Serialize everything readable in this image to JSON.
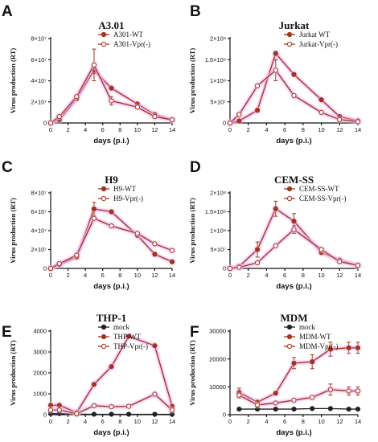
{
  "colors": {
    "wt": "#a0351c",
    "vpr": "#a0351c",
    "mock": "#222222",
    "halo": "#f2b8ee"
  },
  "chart_data": [
    {
      "letter": "A",
      "type": "line",
      "title": "A3.01",
      "ylabel": "Virus production (RT)",
      "xlabel": "days (p.i.)",
      "xlim": [
        0,
        14
      ],
      "xticks": [
        0,
        2,
        4,
        6,
        8,
        10,
        12,
        14
      ],
      "ylim": [
        0,
        80000000
      ],
      "ytick_values": [
        0,
        20000000,
        40000000,
        60000000,
        80000000
      ],
      "ytick_labels": [
        "0",
        "2×10⁷",
        "4×10⁷",
        "6×10⁷",
        "8×10⁷"
      ],
      "legend_position": "top-right",
      "series": [
        {
          "name": "A301-WT",
          "style": "wt",
          "x": [
            0,
            1,
            3,
            5,
            7,
            10,
            12,
            14
          ],
          "y": [
            0,
            3000000,
            23000000,
            50000000,
            33000000,
            18000000,
            8000000,
            3000000
          ],
          "err": [
            0,
            0,
            0,
            3000000,
            0,
            0,
            0,
            0
          ]
        },
        {
          "name": "A301-Vpr(-)",
          "style": "vpr",
          "x": [
            0,
            1,
            3,
            5,
            7,
            10,
            12,
            14
          ],
          "y": [
            0,
            6000000,
            25000000,
            55000000,
            21000000,
            15000000,
            6000000,
            3000000
          ],
          "err": [
            0,
            0,
            0,
            15000000,
            4000000,
            0,
            0,
            0
          ]
        }
      ]
    },
    {
      "letter": "B",
      "type": "line",
      "title": "Jurkat",
      "ylabel": "Virus production (RT)",
      "xlabel": "days (p.i.)",
      "xlim": [
        0,
        14
      ],
      "xticks": [
        0,
        2,
        4,
        6,
        8,
        10,
        12,
        14
      ],
      "ylim": [
        0,
        200000000
      ],
      "ytick_values": [
        0,
        50000000,
        100000000,
        150000000,
        200000000
      ],
      "ytick_labels": [
        "0",
        "5×10⁷",
        "1×10⁸",
        "1.5×10⁸",
        "2×10⁸"
      ],
      "legend_position": "top-right",
      "series": [
        {
          "name": "Jurkat WT",
          "style": "wt",
          "x": [
            0,
            1,
            3,
            5,
            7,
            10,
            12,
            14
          ],
          "y": [
            0,
            5000000,
            30000000,
            165000000,
            115000000,
            55000000,
            15000000,
            5000000
          ],
          "err": [
            0,
            0,
            0,
            0,
            0,
            0,
            0,
            0
          ]
        },
        {
          "name": "Jurkat-Vpr(-)",
          "style": "vpr",
          "x": [
            0,
            1,
            3,
            5,
            7,
            10,
            12,
            14
          ],
          "y": [
            0,
            20000000,
            88000000,
            125000000,
            65000000,
            25000000,
            8000000,
            3000000
          ],
          "err": [
            0,
            0,
            0,
            25000000,
            0,
            0,
            0,
            0
          ]
        }
      ]
    },
    {
      "letter": "C",
      "type": "line",
      "title": "H9",
      "ylabel": "Virus production (RT)",
      "xlabel": "days (p.i.)",
      "xlim": [
        0,
        14
      ],
      "xticks": [
        0,
        2,
        4,
        6,
        8,
        10,
        12,
        14
      ],
      "ylim": [
        0,
        80000000
      ],
      "ytick_values": [
        0,
        20000000,
        40000000,
        60000000,
        80000000
      ],
      "ytick_labels": [
        "0",
        "2×10⁷",
        "4×10⁷",
        "6×10⁷",
        "8×10⁷"
      ],
      "legend_position": "top-right",
      "series": [
        {
          "name": "H9-WT",
          "style": "wt",
          "x": [
            0,
            1,
            3,
            5,
            7,
            10,
            12,
            14
          ],
          "y": [
            0,
            4000000,
            12000000,
            63000000,
            60000000,
            35000000,
            15000000,
            7000000
          ],
          "err": [
            0,
            0,
            0,
            7000000,
            0,
            0,
            0,
            0
          ]
        },
        {
          "name": "H9-Vpr(-)",
          "style": "vpr",
          "x": [
            0,
            1,
            3,
            5,
            7,
            10,
            12,
            14
          ],
          "y": [
            0,
            5000000,
            14000000,
            53000000,
            45000000,
            37000000,
            26000000,
            19000000
          ],
          "err": [
            0,
            0,
            0,
            0,
            0,
            0,
            0,
            0
          ]
        }
      ]
    },
    {
      "letter": "D",
      "type": "line",
      "title": "CEM-SS",
      "ylabel": "Virus production (RT)",
      "xlabel": "days (p.i.)",
      "xlim": [
        0,
        14
      ],
      "xticks": [
        0,
        2,
        4,
        6,
        8,
        10,
        12,
        14
      ],
      "ylim": [
        0,
        200000000
      ],
      "ytick_values": [
        0,
        50000000,
        100000000,
        150000000,
        200000000
      ],
      "ytick_labels": [
        "0",
        "5×10⁷",
        "1×10⁸",
        "1.5×10⁸",
        "2×10⁸"
      ],
      "legend_position": "top-right",
      "series": [
        {
          "name": "CEM-SS-WT",
          "style": "wt",
          "x": [
            0,
            1,
            3,
            5,
            7,
            10,
            12,
            14
          ],
          "y": [
            0,
            5000000,
            50000000,
            158000000,
            125000000,
            42000000,
            22000000,
            8000000
          ],
          "err": [
            0,
            0,
            20000000,
            20000000,
            20000000,
            0,
            0,
            0
          ]
        },
        {
          "name": "CEM-SS-Vpr(-)",
          "style": "vpr",
          "x": [
            0,
            1,
            3,
            5,
            7,
            10,
            12,
            14
          ],
          "y": [
            0,
            3000000,
            15000000,
            60000000,
            103000000,
            50000000,
            18000000,
            8000000
          ],
          "err": [
            0,
            0,
            0,
            0,
            10000000,
            0,
            0,
            0
          ]
        }
      ]
    },
    {
      "letter": "E",
      "type": "line",
      "title": "THP-1",
      "ylabel": "Virus production (RT)",
      "xlabel": "days (p.i.)",
      "xlim": [
        0,
        14
      ],
      "xticks": [
        0,
        2,
        4,
        6,
        8,
        10,
        12,
        14
      ],
      "ylim": [
        0,
        4000
      ],
      "ytick_values": [
        0,
        1000,
        2000,
        3000,
        4000
      ],
      "ytick_labels": [
        "0",
        "1000",
        "2000",
        "3000",
        "4000"
      ],
      "legend_position": "top-right",
      "series": [
        {
          "name": "mock",
          "style": "mock",
          "x": [
            0,
            1,
            3,
            5,
            7,
            9,
            12,
            14
          ],
          "y": [
            50,
            50,
            30,
            20,
            20,
            20,
            20,
            20
          ],
          "err": [
            0,
            0,
            0,
            0,
            0,
            0,
            0,
            0
          ]
        },
        {
          "name": "THP-WT",
          "style": "wt",
          "x": [
            0,
            1,
            3,
            5,
            7,
            9,
            12,
            14
          ],
          "y": [
            450,
            450,
            100,
            1450,
            2300,
            3750,
            3300,
            400
          ],
          "err": [
            0,
            0,
            0,
            0,
            0,
            0,
            0,
            0
          ]
        },
        {
          "name": "THP-Vpr(-)",
          "style": "vpr",
          "x": [
            0,
            1,
            3,
            5,
            7,
            9,
            12,
            14
          ],
          "y": [
            220,
            220,
            50,
            430,
            380,
            400,
            980,
            220
          ],
          "err": [
            0,
            0,
            0,
            0,
            0,
            0,
            0,
            0
          ]
        }
      ]
    },
    {
      "letter": "F",
      "type": "line",
      "title": "MDM",
      "ylabel": "Virus production (RT)",
      "xlabel": "days (p.i.)",
      "xlim": [
        0,
        14
      ],
      "xticks": [
        0,
        2,
        4,
        6,
        8,
        10,
        12,
        14
      ],
      "ylim": [
        0,
        30000
      ],
      "ytick_values": [
        0,
        10000,
        20000,
        30000
      ],
      "ytick_labels": [
        "0",
        "10000",
        "20000",
        "30000"
      ],
      "legend_position": "top-right",
      "series": [
        {
          "name": "mock",
          "style": "mock",
          "x": [
            1,
            3,
            5,
            7,
            9,
            11,
            13,
            14
          ],
          "y": [
            2000,
            2000,
            2000,
            2000,
            2200,
            2200,
            2000,
            2000
          ],
          "err": [
            0,
            0,
            0,
            0,
            0,
            0,
            0,
            0
          ]
        },
        {
          "name": "MDM-WT",
          "style": "wt",
          "x": [
            1,
            3,
            5,
            7,
            9,
            11,
            13,
            14
          ],
          "y": [
            8000,
            4500,
            7700,
            18500,
            19000,
            23500,
            24000,
            24000
          ],
          "err": [
            1500,
            0,
            0,
            2000,
            2500,
            2500,
            2000,
            2000
          ]
        },
        {
          "name": "MDM-Vpr(-)",
          "style": "vpr",
          "x": [
            1,
            3,
            5,
            7,
            9,
            11,
            13,
            14
          ],
          "y": [
            7000,
            3500,
            4200,
            5200,
            6200,
            9000,
            8500,
            8500
          ],
          "err": [
            1000,
            0,
            0,
            0,
            0,
            2000,
            1500,
            1500
          ]
        }
      ]
    }
  ]
}
